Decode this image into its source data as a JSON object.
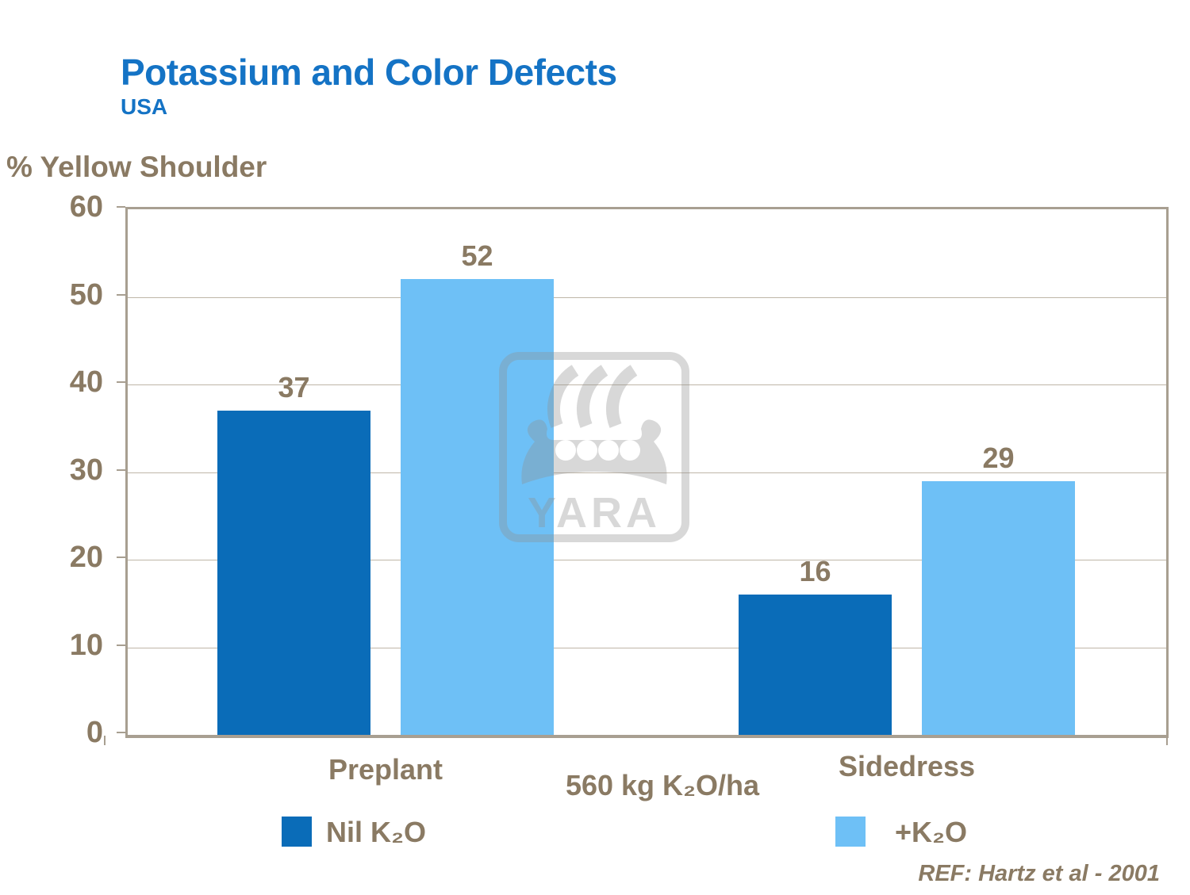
{
  "chart_data": {
    "type": "bar",
    "title": "Potassium and Color Defects",
    "subtitle": "USA",
    "ylabel": "% Yellow Shoulder",
    "ylim": [
      0,
      60
    ],
    "yticks": [
      60,
      50,
      40,
      30,
      20,
      10,
      0
    ],
    "grid": true,
    "categories": [
      "Preplant",
      "Sidedress"
    ],
    "series": [
      {
        "name": "Nil K₂O",
        "color": "#0A6CB8",
        "values": [
          37,
          16
        ]
      },
      {
        "name": "+K₂O",
        "color": "#6EC0F6",
        "values": [
          52,
          29
        ]
      }
    ],
    "annotation": "560 kg K₂O/ha",
    "legend_position": "bottom",
    "reference": "REF: Hartz et al - 2001"
  },
  "watermark": {
    "text": "YARA",
    "icon": "yara-viking-ship-logo"
  },
  "colors": {
    "title_blue": "#1473C5",
    "text_brown": "#8A7A63",
    "bar_dark_blue": "#0A6CB8",
    "bar_light_blue": "#6EC0F6",
    "axis_tan": "#A89F91",
    "gridline_tan": "#BFB6A8",
    "watermark_gray": "#D9D9D9"
  }
}
